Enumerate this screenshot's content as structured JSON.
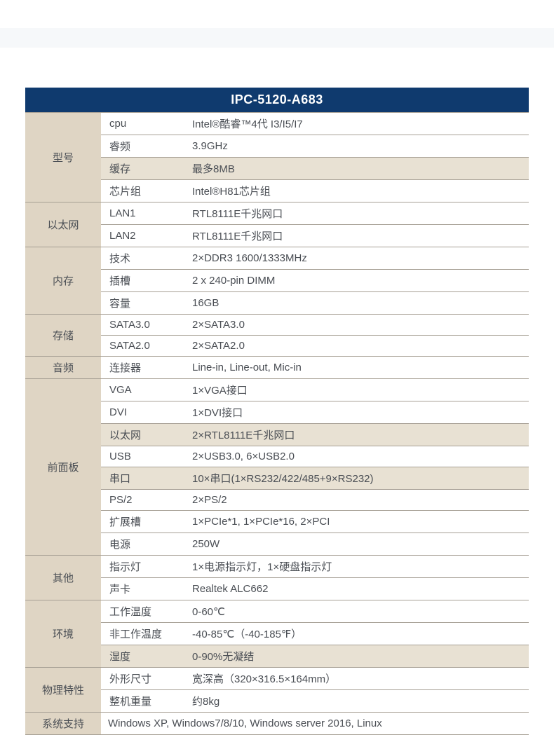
{
  "title": "IPC-5120-A683",
  "colors": {
    "header_bg": "#0f3a6e",
    "header_text": "#ffffff",
    "category_bg": "#dfd5c4",
    "row_bg": "#ffffff",
    "row_alt_bg": "#e8e1d3",
    "border": "#a69f94",
    "text": "#4a4e54"
  },
  "sections": [
    {
      "category": "型号",
      "rows": [
        {
          "label": "cpu",
          "value": "Intel®酷睿™4代 I3/I5/I7",
          "alt": false
        },
        {
          "label": "睿频",
          "value": "3.9GHz",
          "alt": false
        },
        {
          "label": "缓存",
          "value": "最多8MB",
          "alt": true
        },
        {
          "label": "芯片组",
          "value": "Intel®H81芯片组",
          "alt": false
        }
      ]
    },
    {
      "category": "以太网",
      "rows": [
        {
          "label": "LAN1",
          "value": "RTL8111E千兆网口",
          "alt": false
        },
        {
          "label": "LAN2",
          "value": "RTL8111E千兆网口",
          "alt": false
        }
      ]
    },
    {
      "category": "内存",
      "rows": [
        {
          "label": "技术",
          "value": "2×DDR3 1600/1333MHz",
          "alt": false
        },
        {
          "label": "插槽",
          "value": "2 x 240-pin DIMM",
          "alt": false
        },
        {
          "label": "容量",
          "value": "16GB",
          "alt": false
        }
      ]
    },
    {
      "category": "存储",
      "rows": [
        {
          "label": "SATA3.0",
          "value": "2×SATA3.0",
          "alt": false
        },
        {
          "label": "SATA2.0",
          "value": "2×SATA2.0",
          "alt": false
        }
      ]
    },
    {
      "category": "音频",
      "rows": [
        {
          "label": "连接器",
          "value": "Line-in, Line-out, Mic-in",
          "alt": false
        }
      ]
    },
    {
      "category": "前面板",
      "rows": [
        {
          "label": "VGA",
          "value": "1×VGA接口",
          "alt": false
        },
        {
          "label": "DVI",
          "value": "1×DVI接口",
          "alt": false
        },
        {
          "label": "以太网",
          "value": "2×RTL8111E千兆网口",
          "alt": true
        },
        {
          "label": "USB",
          "value": "2×USB3.0, 6×USB2.0",
          "alt": false
        },
        {
          "label": "串口",
          "value": "10×串口(1×RS232/422/485+9×RS232)",
          "alt": true
        },
        {
          "label": "PS/2",
          "value": "2×PS/2",
          "alt": false
        },
        {
          "label": "扩展槽",
          "value": "1×PCIe*1, 1×PCIe*16, 2×PCI",
          "alt": false
        },
        {
          "label": "电源",
          "value": "250W",
          "alt": false
        }
      ]
    },
    {
      "category": "其他",
      "rows": [
        {
          "label": "指示灯",
          "value": "1×电源指示灯，1×硬盘指示灯",
          "alt": false
        },
        {
          "label": "声卡",
          "value": "Realtek ALC662",
          "alt": false
        }
      ]
    },
    {
      "category": "环境",
      "rows": [
        {
          "label": "工作温度",
          "value": "0-60℃",
          "alt": false
        },
        {
          "label": "非工作温度",
          "value": "-40-85℃（-40-185℉）",
          "alt": false
        },
        {
          "label": "湿度",
          "value": "0-90%无凝结",
          "alt": true
        }
      ]
    },
    {
      "category": "物理特性",
      "rows": [
        {
          "label": "外形尺寸",
          "value": "宽深高（320×316.5×164mm）",
          "alt": false
        },
        {
          "label": "整机重量",
          "value": "约8kg",
          "alt": false
        }
      ]
    },
    {
      "category": "系统支持",
      "single": true,
      "value": "Windows XP, Windows7/8/10, Windows server 2016, Linux"
    }
  ]
}
